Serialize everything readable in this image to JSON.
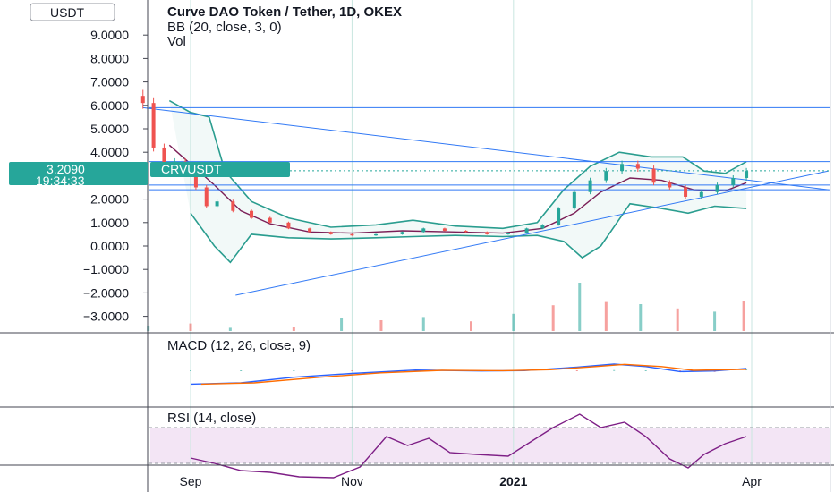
{
  "header": {
    "currency_button": "USDT",
    "title": "Curve DAO Token / Tether, 1D, OKEX",
    "indicator_bb": "BB (20, close, 3, 0)",
    "indicator_vol": "Vol",
    "macd_label": "MACD (12, 26, close, 9)",
    "rsi_label": "RSI (14, close)",
    "price_tag": "3.2090",
    "countdown_tag": "19:34:33",
    "symbol_tag": "CRVUSDT"
  },
  "colors": {
    "up": "#26a69a",
    "down": "#ef5350",
    "bb_band": "#2a9d8f",
    "bb_basis": "#7b1f57",
    "trendline": "#3179f5",
    "macd_line": "#2962ff",
    "signal_line": "#ff6d00",
    "rsi_line": "#7e1f86",
    "rsi_band": "#e1bee7",
    "tag_bg": "#26a69a"
  },
  "chart_data": [
    {
      "type": "candlestick",
      "title": "Curve DAO Token / Tether, 1D, OKEX",
      "ylabel": "USDT",
      "ylim": [
        -3.6,
        10.8
      ],
      "y_ticks": [
        "9.0000",
        "8.0000",
        "7.0000",
        "6.0000",
        "5.0000",
        "4.0000",
        "2.0000",
        "1.0000",
        "0.0000",
        "−1.0000",
        "−2.0000",
        "−3.0000"
      ],
      "y_tick_values": [
        9,
        8,
        7,
        6,
        5,
        4,
        2,
        1,
        0,
        -1,
        -2,
        -3
      ],
      "x_ticks": [
        "Sep",
        "Nov",
        "2021",
        "Apr"
      ],
      "x_tick_values": [
        "2020-09-01",
        "2020-11-01",
        "2021-01-01",
        "2021-04-01"
      ],
      "last_price": 3.209,
      "close_series": [
        {
          "date": "2020-08-14",
          "close": 6.1
        },
        {
          "date": "2020-08-18",
          "close": 4.2
        },
        {
          "date": "2020-08-22",
          "close": 3.3
        },
        {
          "date": "2020-08-26",
          "close": 3.6
        },
        {
          "date": "2020-08-30",
          "close": 3.4
        },
        {
          "date": "2020-09-03",
          "close": 2.5
        },
        {
          "date": "2020-09-07",
          "close": 1.7
        },
        {
          "date": "2020-09-11",
          "close": 1.9
        },
        {
          "date": "2020-09-17",
          "close": 1.5
        },
        {
          "date": "2020-09-24",
          "close": 1.2
        },
        {
          "date": "2020-10-01",
          "close": 1.0
        },
        {
          "date": "2020-10-08",
          "close": 0.75
        },
        {
          "date": "2020-10-16",
          "close": 0.6
        },
        {
          "date": "2020-10-24",
          "close": 0.5
        },
        {
          "date": "2020-11-01",
          "close": 0.45
        },
        {
          "date": "2020-11-10",
          "close": 0.5
        },
        {
          "date": "2020-11-20",
          "close": 0.6
        },
        {
          "date": "2020-11-28",
          "close": 0.75
        },
        {
          "date": "2020-12-06",
          "close": 0.65
        },
        {
          "date": "2020-12-14",
          "close": 0.6
        },
        {
          "date": "2020-12-22",
          "close": 0.5
        },
        {
          "date": "2020-12-30",
          "close": 0.55
        },
        {
          "date": "2021-01-06",
          "close": 0.75
        },
        {
          "date": "2021-01-12",
          "close": 0.9
        },
        {
          "date": "2021-01-18",
          "close": 1.6
        },
        {
          "date": "2021-01-24",
          "close": 2.3
        },
        {
          "date": "2021-01-30",
          "close": 2.8
        },
        {
          "date": "2021-02-05",
          "close": 3.2
        },
        {
          "date": "2021-02-11",
          "close": 3.5
        },
        {
          "date": "2021-02-17",
          "close": 3.3
        },
        {
          "date": "2021-02-23",
          "close": 2.7
        },
        {
          "date": "2021-03-01",
          "close": 2.5
        },
        {
          "date": "2021-03-07",
          "close": 2.1
        },
        {
          "date": "2021-03-13",
          "close": 2.3
        },
        {
          "date": "2021-03-19",
          "close": 2.6
        },
        {
          "date": "2021-03-25",
          "close": 2.9
        },
        {
          "date": "2021-03-30",
          "close": 3.2
        }
      ],
      "bollinger": {
        "upper": [
          {
            "date": "2020-08-24",
            "value": 6.2
          },
          {
            "date": "2020-09-01",
            "value": 5.7
          },
          {
            "date": "2020-09-08",
            "value": 5.5
          },
          {
            "date": "2020-09-14",
            "value": 3.2
          },
          {
            "date": "2020-09-24",
            "value": 1.9
          },
          {
            "date": "2020-10-08",
            "value": 1.2
          },
          {
            "date": "2020-10-24",
            "value": 0.8
          },
          {
            "date": "2020-11-10",
            "value": 0.9
          },
          {
            "date": "2020-11-24",
            "value": 1.1
          },
          {
            "date": "2020-12-10",
            "value": 0.85
          },
          {
            "date": "2020-12-28",
            "value": 0.75
          },
          {
            "date": "2021-01-10",
            "value": 1.0
          },
          {
            "date": "2021-01-20",
            "value": 2.4
          },
          {
            "date": "2021-01-30",
            "value": 3.4
          },
          {
            "date": "2021-02-10",
            "value": 4.0
          },
          {
            "date": "2021-02-22",
            "value": 3.8
          },
          {
            "date": "2021-03-06",
            "value": 3.8
          },
          {
            "date": "2021-03-14",
            "value": 3.2
          },
          {
            "date": "2021-03-22",
            "value": 3.1
          },
          {
            "date": "2021-03-30",
            "value": 3.6
          }
        ],
        "lower": [
          {
            "date": "2020-09-01",
            "value": 1.4
          },
          {
            "date": "2020-09-10",
            "value": 0.0
          },
          {
            "date": "2020-09-16",
            "value": -0.7
          },
          {
            "date": "2020-09-24",
            "value": 0.5
          },
          {
            "date": "2020-10-08",
            "value": 0.35
          },
          {
            "date": "2020-10-24",
            "value": 0.3
          },
          {
            "date": "2020-11-10",
            "value": 0.35
          },
          {
            "date": "2020-11-24",
            "value": 0.4
          },
          {
            "date": "2020-12-10",
            "value": 0.45
          },
          {
            "date": "2020-12-28",
            "value": 0.4
          },
          {
            "date": "2021-01-10",
            "value": 0.45
          },
          {
            "date": "2021-01-20",
            "value": 0.2
          },
          {
            "date": "2021-01-27",
            "value": -0.5
          },
          {
            "date": "2021-02-03",
            "value": 0.0
          },
          {
            "date": "2021-02-14",
            "value": 1.8
          },
          {
            "date": "2021-02-26",
            "value": 1.6
          },
          {
            "date": "2021-03-08",
            "value": 1.4
          },
          {
            "date": "2021-03-18",
            "value": 1.7
          },
          {
            "date": "2021-03-30",
            "value": 1.6
          }
        ],
        "basis": [
          {
            "date": "2020-08-24",
            "value": 4.3
          },
          {
            "date": "2020-09-01",
            "value": 3.5
          },
          {
            "date": "2020-09-10",
            "value": 2.6
          },
          {
            "date": "2020-09-20",
            "value": 1.5
          },
          {
            "date": "2020-10-01",
            "value": 0.95
          },
          {
            "date": "2020-10-16",
            "value": 0.6
          },
          {
            "date": "2020-11-01",
            "value": 0.55
          },
          {
            "date": "2020-11-20",
            "value": 0.65
          },
          {
            "date": "2020-12-10",
            "value": 0.6
          },
          {
            "date": "2020-12-28",
            "value": 0.55
          },
          {
            "date": "2021-01-12",
            "value": 0.75
          },
          {
            "date": "2021-01-24",
            "value": 1.4
          },
          {
            "date": "2021-02-03",
            "value": 2.3
          },
          {
            "date": "2021-02-14",
            "value": 2.9
          },
          {
            "date": "2021-02-26",
            "value": 2.8
          },
          {
            "date": "2021-03-10",
            "value": 2.4
          },
          {
            "date": "2021-03-22",
            "value": 2.35
          },
          {
            "date": "2021-03-30",
            "value": 2.7
          }
        ]
      },
      "horizontal_levels": [
        5.9,
        3.6,
        2.6,
        2.4
      ],
      "trendlines": [
        {
          "from": {
            "date": "2020-08-14",
            "value": 5.9
          },
          "to": {
            "date": "2021-04-30",
            "value": 2.4
          }
        },
        {
          "from": {
            "date": "2020-09-18",
            "value": -2.1
          },
          "to": {
            "date": "2021-04-30",
            "value": 3.2
          }
        }
      ],
      "volume": [
        {
          "date": "2020-08-16",
          "value": 10
        },
        {
          "date": "2020-09-01",
          "value": 14
        },
        {
          "date": "2020-09-16",
          "value": 6
        },
        {
          "date": "2020-10-10",
          "value": 8
        },
        {
          "date": "2020-10-28",
          "value": 24
        },
        {
          "date": "2020-11-12",
          "value": 20
        },
        {
          "date": "2020-11-28",
          "value": 26
        },
        {
          "date": "2020-12-16",
          "value": 18
        },
        {
          "date": "2021-01-01",
          "value": 32
        },
        {
          "date": "2021-01-16",
          "value": 48
        },
        {
          "date": "2021-01-26",
          "value": 90
        },
        {
          "date": "2021-02-05",
          "value": 54
        },
        {
          "date": "2021-02-18",
          "value": 50
        },
        {
          "date": "2021-03-04",
          "value": 42
        },
        {
          "date": "2021-03-18",
          "value": 36
        },
        {
          "date": "2021-03-29",
          "value": 56
        }
      ]
    },
    {
      "type": "line",
      "title": "MACD (12, 26, close, 9)",
      "series": [
        {
          "name": "MACD",
          "points": [
            {
              "date": "2020-09-01",
              "value": -1.1
            },
            {
              "date": "2020-09-20",
              "value": -1.0
            },
            {
              "date": "2020-10-10",
              "value": -0.55
            },
            {
              "date": "2020-11-01",
              "value": -0.25
            },
            {
              "date": "2020-11-25",
              "value": 0.02
            },
            {
              "date": "2020-12-20",
              "value": -0.05
            },
            {
              "date": "2021-01-05",
              "value": -0.02
            },
            {
              "date": "2021-01-25",
              "value": 0.25
            },
            {
              "date": "2021-02-08",
              "value": 0.5
            },
            {
              "date": "2021-02-20",
              "value": 0.3
            },
            {
              "date": "2021-03-05",
              "value": -0.1
            },
            {
              "date": "2021-03-18",
              "value": -0.05
            },
            {
              "date": "2021-03-30",
              "value": 0.15
            }
          ]
        },
        {
          "name": "Signal",
          "points": [
            {
              "date": "2020-09-05",
              "value": -1.1
            },
            {
              "date": "2020-09-25",
              "value": -1.0
            },
            {
              "date": "2020-10-20",
              "value": -0.55
            },
            {
              "date": "2020-11-12",
              "value": -0.2
            },
            {
              "date": "2020-12-05",
              "value": 0.0
            },
            {
              "date": "2020-12-28",
              "value": -0.03
            },
            {
              "date": "2021-01-15",
              "value": 0.05
            },
            {
              "date": "2021-02-01",
              "value": 0.3
            },
            {
              "date": "2021-02-12",
              "value": 0.48
            },
            {
              "date": "2021-02-26",
              "value": 0.3
            },
            {
              "date": "2021-03-10",
              "value": 0.0
            },
            {
              "date": "2021-03-30",
              "value": 0.08
            }
          ]
        }
      ]
    },
    {
      "type": "line",
      "title": "RSI (14, close)",
      "ylim": [
        0,
        100
      ],
      "band": [
        30,
        70
      ],
      "series": [
        {
          "name": "RSI",
          "points": [
            {
              "date": "2020-09-01",
              "value": 36
            },
            {
              "date": "2020-09-10",
              "value": 30
            },
            {
              "date": "2020-09-20",
              "value": 22
            },
            {
              "date": "2020-10-01",
              "value": 20
            },
            {
              "date": "2020-10-12",
              "value": 15
            },
            {
              "date": "2020-10-25",
              "value": 14
            },
            {
              "date": "2020-11-04",
              "value": 26
            },
            {
              "date": "2020-11-14",
              "value": 60
            },
            {
              "date": "2020-11-22",
              "value": 50
            },
            {
              "date": "2020-11-30",
              "value": 58
            },
            {
              "date": "2020-12-08",
              "value": 42
            },
            {
              "date": "2020-12-18",
              "value": 40
            },
            {
              "date": "2020-12-30",
              "value": 38
            },
            {
              "date": "2021-01-08",
              "value": 55
            },
            {
              "date": "2021-01-16",
              "value": 70
            },
            {
              "date": "2021-01-26",
              "value": 85
            },
            {
              "date": "2021-02-03",
              "value": 70
            },
            {
              "date": "2021-02-12",
              "value": 76
            },
            {
              "date": "2021-02-20",
              "value": 60
            },
            {
              "date": "2021-03-01",
              "value": 35
            },
            {
              "date": "2021-03-08",
              "value": 25
            },
            {
              "date": "2021-03-14",
              "value": 40
            },
            {
              "date": "2021-03-22",
              "value": 52
            },
            {
              "date": "2021-03-30",
              "value": 60
            }
          ]
        }
      ]
    }
  ]
}
